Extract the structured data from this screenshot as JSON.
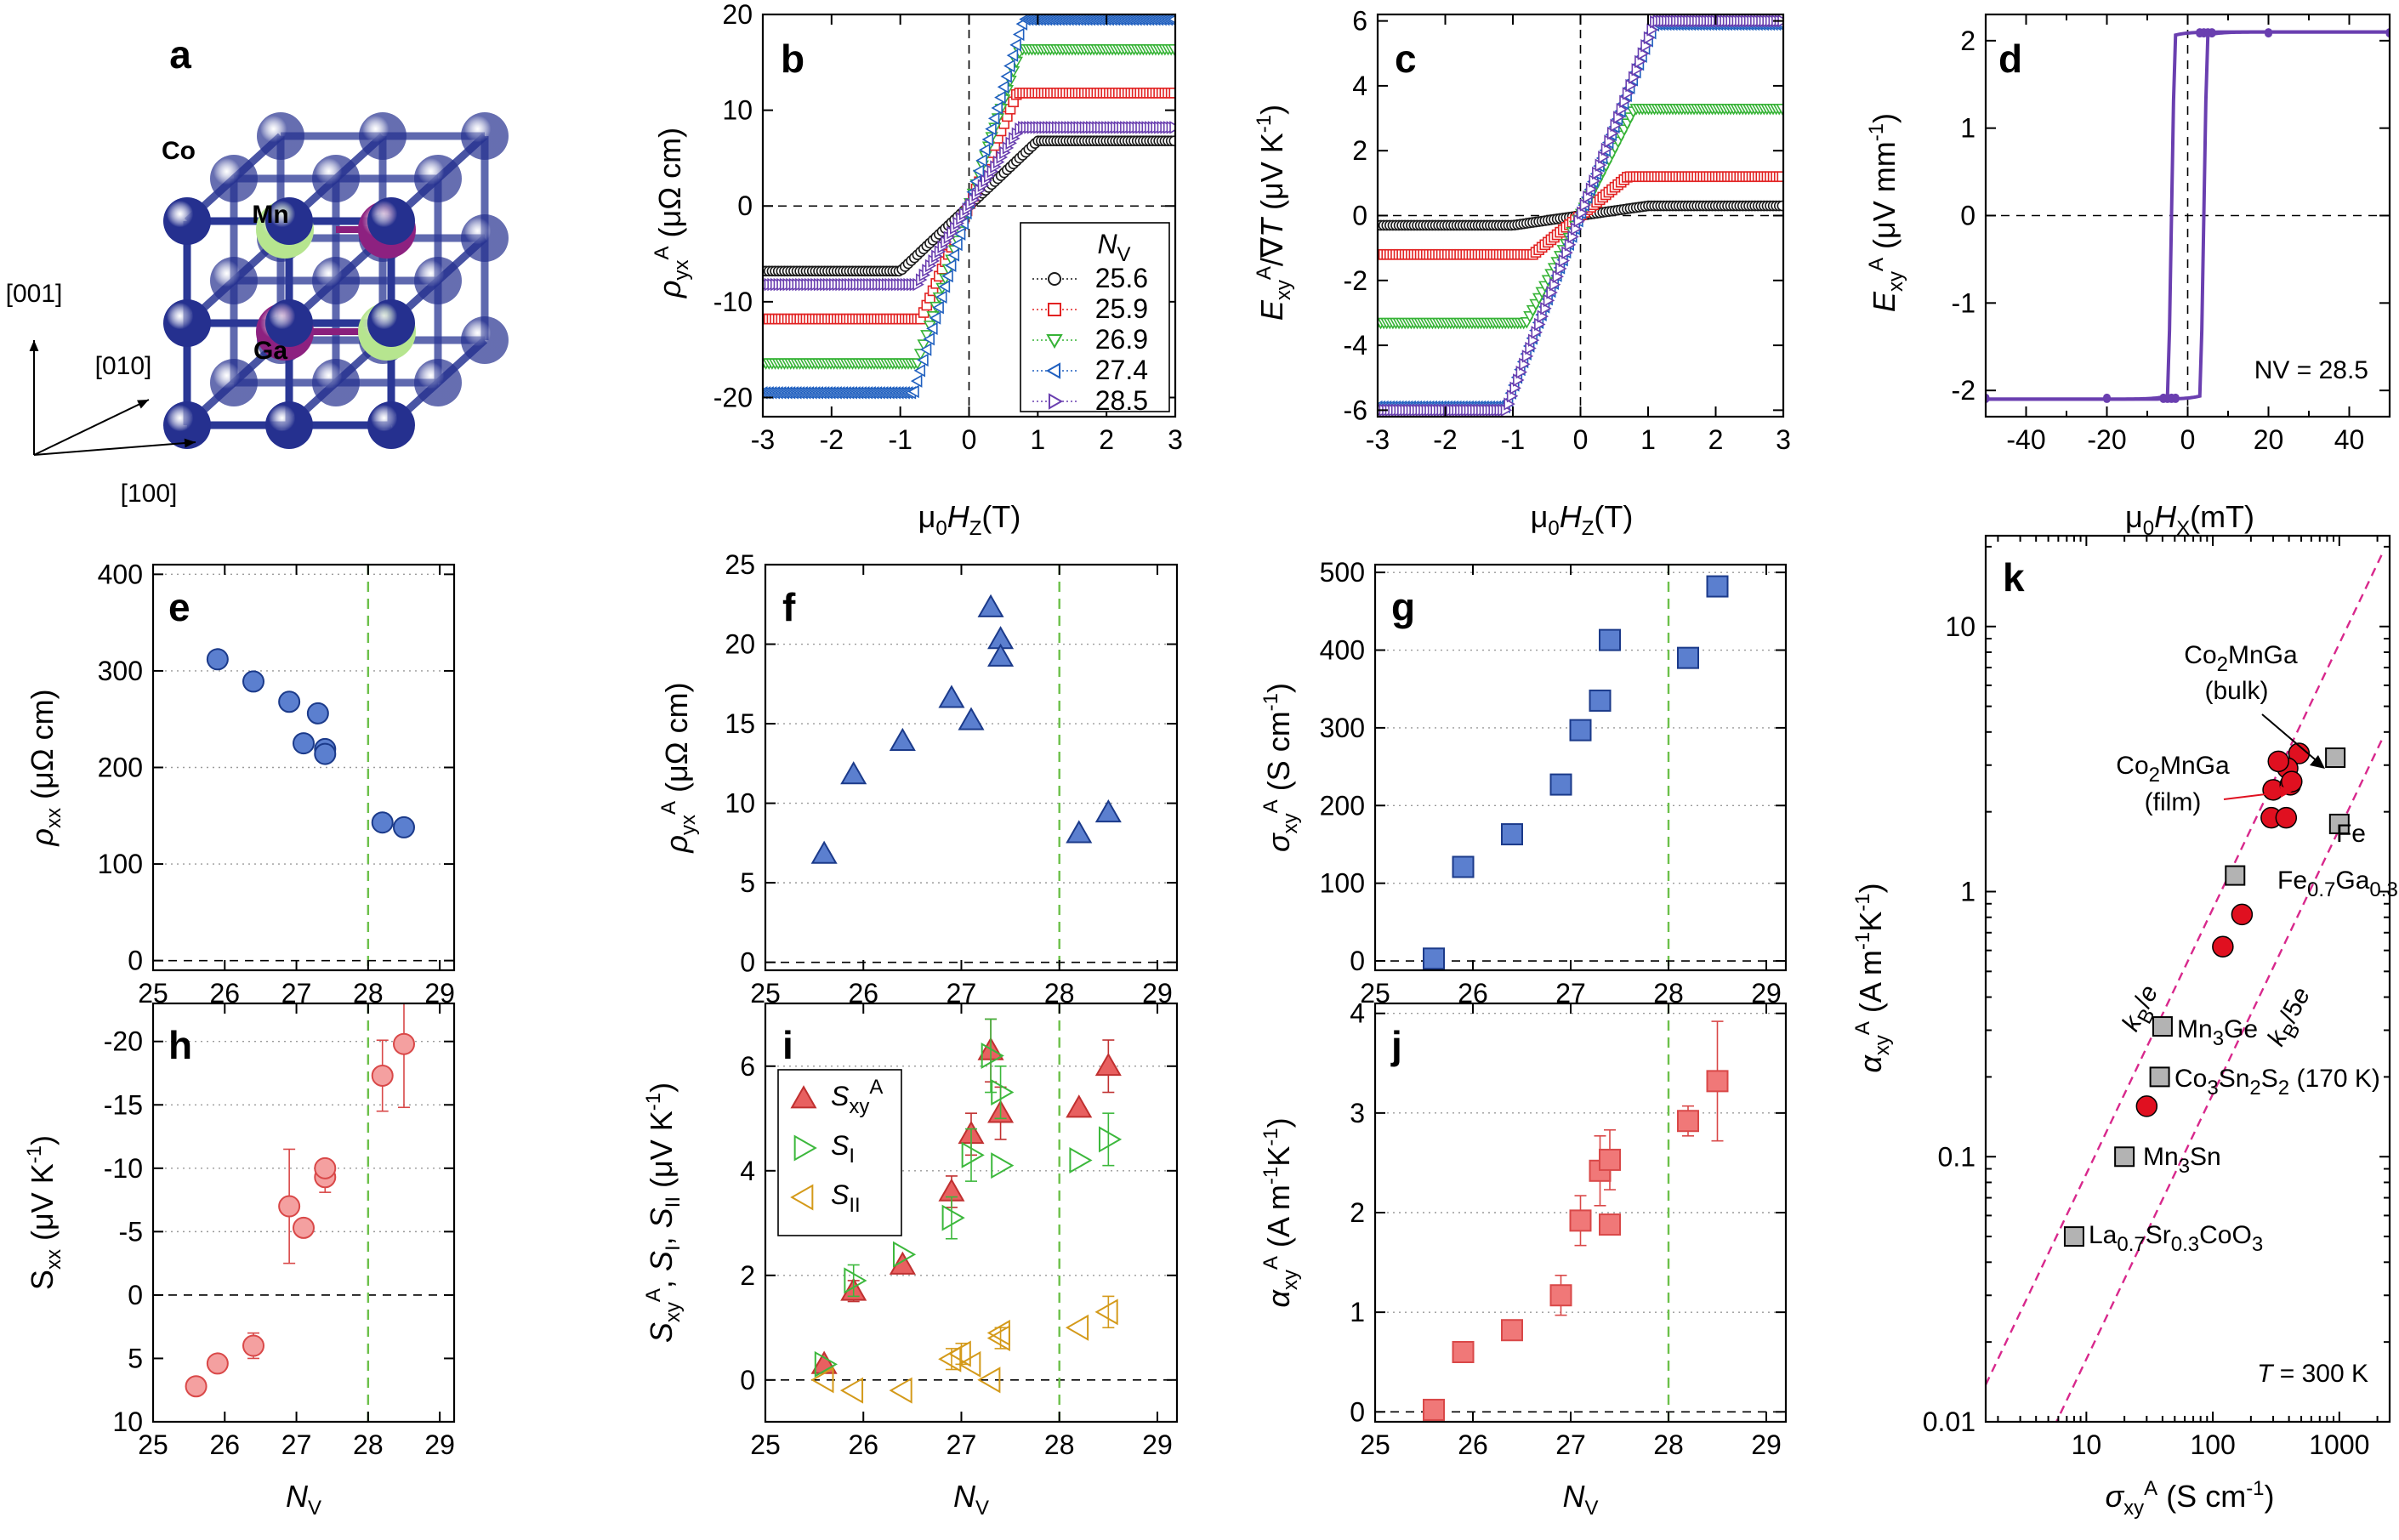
{
  "panels": {
    "a": {
      "label": "a",
      "atoms": [
        "Co",
        "Mn",
        "Ga"
      ],
      "axes": [
        "[001]",
        "[010]",
        "[100]"
      ],
      "colors": {
        "Co": "#25308f",
        "Mn": "#b6e58f",
        "Ga": "#8d2180",
        "bonds": "#2a3795"
      }
    }
  },
  "chart_data": [
    {
      "id": "b",
      "type": "line",
      "panel_label": "b",
      "xlabel": "μ0HZ(T)",
      "ylabel": "ρyxA (μΩ cm)",
      "xlim": [
        -3,
        3
      ],
      "ylim": [
        -22,
        20
      ],
      "xticks": [
        -3,
        -2,
        -1,
        0,
        1,
        2,
        3
      ],
      "yticks": [
        -20,
        -10,
        0,
        10,
        20
      ],
      "legend_title": "NV",
      "legend_position": "bottom-right",
      "series": [
        {
          "name": "25.6",
          "color": "#1a1a1a",
          "marker": "circle",
          "saturation": 6.8,
          "hsat": 1.0
        },
        {
          "name": "25.9",
          "color": "#e22222",
          "marker": "square",
          "saturation": 11.8,
          "hsat": 0.7
        },
        {
          "name": "26.9",
          "color": "#36b336",
          "marker": "triangle-down",
          "saturation": 16.4,
          "hsat": 0.75
        },
        {
          "name": "27.4",
          "color": "#1f5fbf",
          "marker": "triangle-left",
          "saturation": 19.5,
          "hsat": 0.8
        },
        {
          "name": "28.5",
          "color": "#6a3fb0",
          "marker": "triangle-right",
          "saturation": 8.2,
          "hsat": 0.75
        }
      ]
    },
    {
      "id": "c",
      "type": "line",
      "panel_label": "c",
      "xlabel": "μ0HZ(T)",
      "ylabel": "ExyA/∇T (μV K-1)",
      "xlim": [
        -3,
        3
      ],
      "ylim": [
        -6.2,
        6.2
      ],
      "xticks": [
        -3,
        -2,
        -1,
        0,
        1,
        2,
        3
      ],
      "yticks": [
        -6,
        -4,
        -2,
        0,
        2,
        4,
        6
      ],
      "series": [
        {
          "name": "25.6",
          "color": "#1a1a1a",
          "marker": "circle",
          "saturation": 0.3,
          "hsat": 1.0
        },
        {
          "name": "25.9",
          "color": "#e22222",
          "marker": "square",
          "saturation": 1.2,
          "hsat": 0.7
        },
        {
          "name": "26.9",
          "color": "#36b336",
          "marker": "triangle-down",
          "saturation": 3.3,
          "hsat": 0.8
        },
        {
          "name": "27.4",
          "color": "#1f5fbf",
          "marker": "triangle-left",
          "saturation": 5.9,
          "hsat": 1.1
        },
        {
          "name": "28.5",
          "color": "#6a3fb0",
          "marker": "triangle-right",
          "saturation": 6.0,
          "hsat": 1.1
        }
      ]
    },
    {
      "id": "d",
      "type": "line",
      "panel_label": "d",
      "xlabel": "μ0HX(mT)",
      "ylabel": "ExyA (μV mm-1)",
      "xlim": [
        -50,
        50
      ],
      "ylim": [
        -2.3,
        2.3
      ],
      "xticks": [
        -40,
        -20,
        0,
        20,
        40
      ],
      "yticks": [
        -2,
        -1,
        0,
        1,
        2
      ],
      "annotation": "NV = 28.5",
      "series": [
        {
          "name": "28.5",
          "color": "#6a3fb0",
          "saturation": 2.1,
          "coercive_field": 4
        }
      ]
    },
    {
      "id": "e",
      "type": "scatter",
      "panel_label": "e",
      "xlabel": "NV",
      "ylabel": "ρxx (μΩ cm)",
      "xlim": [
        25,
        29.2
      ],
      "ylim": [
        -10,
        410
      ],
      "xticks": [
        25,
        26,
        27,
        28,
        29
      ],
      "yticks": [
        0,
        100,
        200,
        300,
        400
      ],
      "vline": 28,
      "marker": "circle",
      "color": "#5b7fcf",
      "x": [
        25.9,
        26.4,
        26.9,
        27.1,
        27.3,
        27.4,
        27.4,
        28.2,
        28.5
      ],
      "y": [
        312,
        289,
        268,
        225,
        256,
        219,
        214,
        143,
        138
      ]
    },
    {
      "id": "f",
      "type": "scatter",
      "panel_label": "f",
      "xlabel": "NV",
      "ylabel": "ρyxA (μΩ cm)",
      "xlim": [
        25,
        29.2
      ],
      "ylim": [
        -0.5,
        25
      ],
      "xticks": [
        25,
        26,
        27,
        28,
        29
      ],
      "yticks": [
        0,
        5,
        10,
        15,
        20,
        25
      ],
      "vline": 28,
      "marker": "triangle",
      "color": "#5b7fcf",
      "x": [
        25.6,
        25.9,
        26.4,
        26.9,
        27.1,
        27.3,
        27.4,
        27.4,
        28.2,
        28.5
      ],
      "y": [
        6.8,
        11.8,
        13.9,
        16.6,
        15.2,
        22.3,
        20.3,
        19.2,
        8.1,
        9.4
      ]
    },
    {
      "id": "g",
      "type": "scatter",
      "panel_label": "g",
      "xlabel": "NV",
      "ylabel": "σxyA (S cm-1)",
      "xlim": [
        25,
        29.2
      ],
      "ylim": [
        -12,
        510
      ],
      "xticks": [
        25,
        26,
        27,
        28,
        29
      ],
      "yticks": [
        0,
        100,
        200,
        300,
        400,
        500
      ],
      "vline": 28,
      "marker": "square",
      "color": "#5b7fcf",
      "x": [
        25.6,
        25.9,
        26.4,
        26.9,
        27.1,
        27.3,
        27.4,
        28.2,
        28.5
      ],
      "y": [
        3,
        121,
        163,
        227,
        297,
        335,
        413,
        390,
        482
      ]
    },
    {
      "id": "h",
      "type": "scatter",
      "panel_label": "h",
      "xlabel": "NV",
      "ylabel": "Sxx (μV K-1)",
      "xlim": [
        25,
        29.2
      ],
      "ylim": [
        10,
        -23
      ],
      "y_reversed": true,
      "xticks": [
        25,
        26,
        27,
        28,
        29
      ],
      "yticks": [
        10,
        5,
        0,
        -5,
        -10,
        -15,
        -20
      ],
      "ytick_labels": [
        "10",
        "5",
        "0",
        "-5",
        "-10",
        "-15",
        "-20"
      ],
      "vline": 28,
      "marker": "circle",
      "color": "#f4a0a0",
      "edge": "#d94848",
      "x": [
        25.6,
        25.9,
        26.4,
        26.9,
        27.1,
        27.4,
        27.4,
        28.2,
        28.5
      ],
      "y": [
        7.2,
        5.4,
        4.0,
        -7.0,
        -5.3,
        -9.3,
        -10.0,
        -17.3,
        -19.8
      ],
      "err": [
        0,
        0,
        1.0,
        4.5,
        0,
        1.2,
        0,
        2.8,
        5.0
      ]
    },
    {
      "id": "i",
      "type": "scatter",
      "panel_label": "i",
      "xlabel": "NV",
      "ylabel": "SxyA, SI, SII (μV K-1)",
      "xlim": [
        25,
        29.2
      ],
      "ylim": [
        -0.8,
        7.2
      ],
      "xticks": [
        25,
        26,
        27,
        28,
        29
      ],
      "yticks": [
        0,
        2,
        4,
        6
      ],
      "vline": 28,
      "legend_position": "top-left",
      "series": [
        {
          "name": "SxyA",
          "marker": "triangle",
          "color": "#e86060",
          "edge": "#c03030",
          "filled": true,
          "x": [
            25.6,
            25.9,
            26.4,
            26.9,
            27.1,
            27.3,
            27.4,
            28.2,
            28.5
          ],
          "y": [
            0.3,
            1.7,
            2.2,
            3.6,
            4.7,
            6.3,
            5.1,
            5.2,
            6.0
          ],
          "err": [
            0,
            0.2,
            0,
            0.3,
            0.4,
            0.6,
            0.5,
            0,
            0.5
          ]
        },
        {
          "name": "SI",
          "marker": "triangle-right",
          "color": "#3cb83c",
          "filled": false,
          "x": [
            25.6,
            25.9,
            26.4,
            26.9,
            27.1,
            27.3,
            27.4,
            27.4,
            28.2,
            28.5
          ],
          "y": [
            0.3,
            1.9,
            2.4,
            3.1,
            4.3,
            6.2,
            5.5,
            4.1,
            4.2,
            4.6
          ],
          "err": [
            0,
            0.3,
            0,
            0.4,
            0.5,
            0.7,
            0.5,
            0,
            0,
            0.5
          ]
        },
        {
          "name": "SII",
          "marker": "triangle-left",
          "color": "#d49a1a",
          "filled": false,
          "x": [
            25.6,
            25.9,
            26.4,
            26.9,
            27.0,
            27.1,
            27.3,
            27.4,
            27.4,
            28.2,
            28.5
          ],
          "y": [
            0.0,
            -0.2,
            -0.2,
            0.4,
            0.5,
            0.3,
            0.0,
            0.8,
            0.9,
            1.0,
            1.3
          ],
          "err": [
            0,
            0,
            0,
            0.2,
            0.2,
            0,
            0,
            0.2,
            0,
            0,
            0.3
          ]
        }
      ]
    },
    {
      "id": "j",
      "type": "scatter",
      "panel_label": "j",
      "xlabel": "NV",
      "ylabel": "αxyA (A m-1K-1)",
      "xlim": [
        25,
        29.2
      ],
      "ylim": [
        -0.1,
        4.1
      ],
      "xticks": [
        25,
        26,
        27,
        28,
        29
      ],
      "yticks": [
        0,
        1,
        2,
        3,
        4
      ],
      "vline": 28,
      "marker": "square",
      "color": "#f07878",
      "edge": "#d94848",
      "x": [
        25.6,
        25.9,
        26.4,
        26.9,
        27.1,
        27.3,
        27.4,
        27.4,
        28.2,
        28.5
      ],
      "y": [
        0.02,
        0.6,
        0.82,
        1.17,
        1.92,
        2.42,
        2.53,
        1.88,
        2.92,
        3.32
      ],
      "err": [
        0,
        0,
        0,
        0.2,
        0.25,
        0.35,
        0.3,
        0,
        0.15,
        0.6
      ]
    },
    {
      "id": "k",
      "type": "scatter",
      "panel_label": "k",
      "xlabel": "σxyA (S cm-1)",
      "ylabel": "αxyA (A m-1K-1)",
      "x_scale": "log",
      "y_scale": "log",
      "xlim": [
        1.6,
        2500
      ],
      "ylim": [
        0.01,
        22
      ],
      "xticks": [
        10,
        100,
        1000
      ],
      "xtick_labels": [
        "10",
        "100",
        "1000"
      ],
      "yticks": [
        0.01,
        0.1,
        1,
        10
      ],
      "ytick_labels": [
        "0.01",
        "0.1",
        "1",
        "10"
      ],
      "annotation": "T = 300 K",
      "lines": [
        {
          "label": "kB/e",
          "color": "#d8288c",
          "factor": 0.00862
        },
        {
          "label": "kB/5e",
          "color": "#d8288c",
          "factor": 0.001724
        }
      ],
      "film": {
        "name": "Co2MnGa (film)",
        "color": "#e01020",
        "x": [
          30,
          120,
          170,
          290,
          380,
          300,
          410,
          480,
          390,
          420,
          330
        ],
        "y": [
          0.155,
          0.62,
          0.82,
          1.9,
          1.9,
          2.42,
          2.53,
          3.32,
          2.92,
          2.6,
          3.1
        ]
      },
      "materials": [
        {
          "name": "Co2MnGa (bulk)",
          "x": 930,
          "y": 3.2
        },
        {
          "name": "Fe",
          "x": 1000,
          "y": 1.8
        },
        {
          "name": "Fe0.7Ga0.3",
          "x": 150,
          "y": 1.15
        },
        {
          "name": "Mn3Ge",
          "x": 40,
          "y": 0.31
        },
        {
          "name": "Co3Sn2S2 (170 K)",
          "x": 38,
          "y": 0.2
        },
        {
          "name": "Mn3Sn",
          "x": 20,
          "y": 0.1
        },
        {
          "name": "La0.7Sr0.3CoO3",
          "x": 8,
          "y": 0.05
        }
      ]
    }
  ]
}
